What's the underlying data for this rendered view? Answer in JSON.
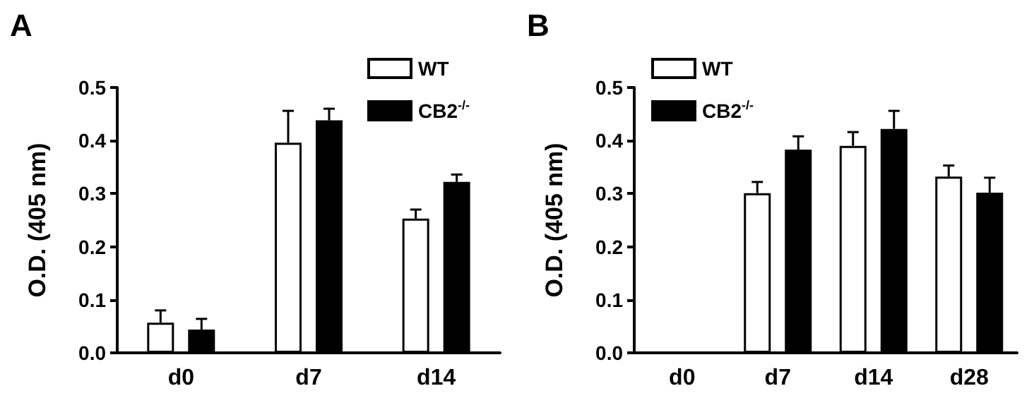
{
  "chart_data": [
    {
      "type": "bar",
      "title": "A",
      "ylabel": "O.D. (405 nm)",
      "categories": [
        "d0",
        "d7",
        "d14"
      ],
      "series": [
        {
          "name": "WT",
          "color": "#ffffff",
          "values": [
            0.057,
            0.396,
            0.253
          ],
          "errors": [
            [
              0.057,
              0.08
            ],
            [
              0.396,
              0.456
            ],
            [
              0.253,
              0.27
            ]
          ]
        },
        {
          "name": "CB2$^{-/-}$",
          "color": "#000000",
          "values": [
            0.044,
            0.438,
            0.322
          ],
          "errors": [
            [
              0.044,
              0.064
            ],
            [
              0.438,
              0.46
            ],
            [
              0.322,
              0.336
            ]
          ]
        }
      ],
      "ylim": [
        0,
        0.5
      ],
      "yticks": [
        {
          "value": 0,
          "label": "0.0"
        },
        0.1,
        0.2,
        0.3,
        0.4,
        0.5
      ],
      "grid": false,
      "legend": "top right"
    },
    {
      "type": "bar",
      "title": "B",
      "ylabel": "O.D. (405 nm)",
      "categories": [
        "d0",
        "d7",
        "d14",
        "d28"
      ],
      "series": [
        {
          "name": "WT",
          "color": "#ffffff",
          "values": [
            null,
            0.301,
            0.39,
            0.332
          ],
          "errors": [
            null,
            [
              0.301,
              0.322
            ],
            [
              0.39,
              0.416
            ],
            [
              0.332,
              0.353
            ]
          ]
        },
        {
          "name": "CB2$^{-/-}$",
          "color": "#000000",
          "values": [
            null,
            0.383,
            0.422,
            0.302
          ],
          "errors": [
            null,
            [
              0.383,
              0.408
            ],
            [
              0.422,
              0.456
            ],
            [
              0.302,
              0.33
            ]
          ]
        }
      ],
      "ylim": [
        0,
        0.5
      ],
      "yticks": [
        {
          "value": 0,
          "label": "0.0"
        },
        0.1,
        0.2,
        0.3,
        0.4,
        0.5
      ],
      "grid": false,
      "legend": "top left"
    }
  ]
}
